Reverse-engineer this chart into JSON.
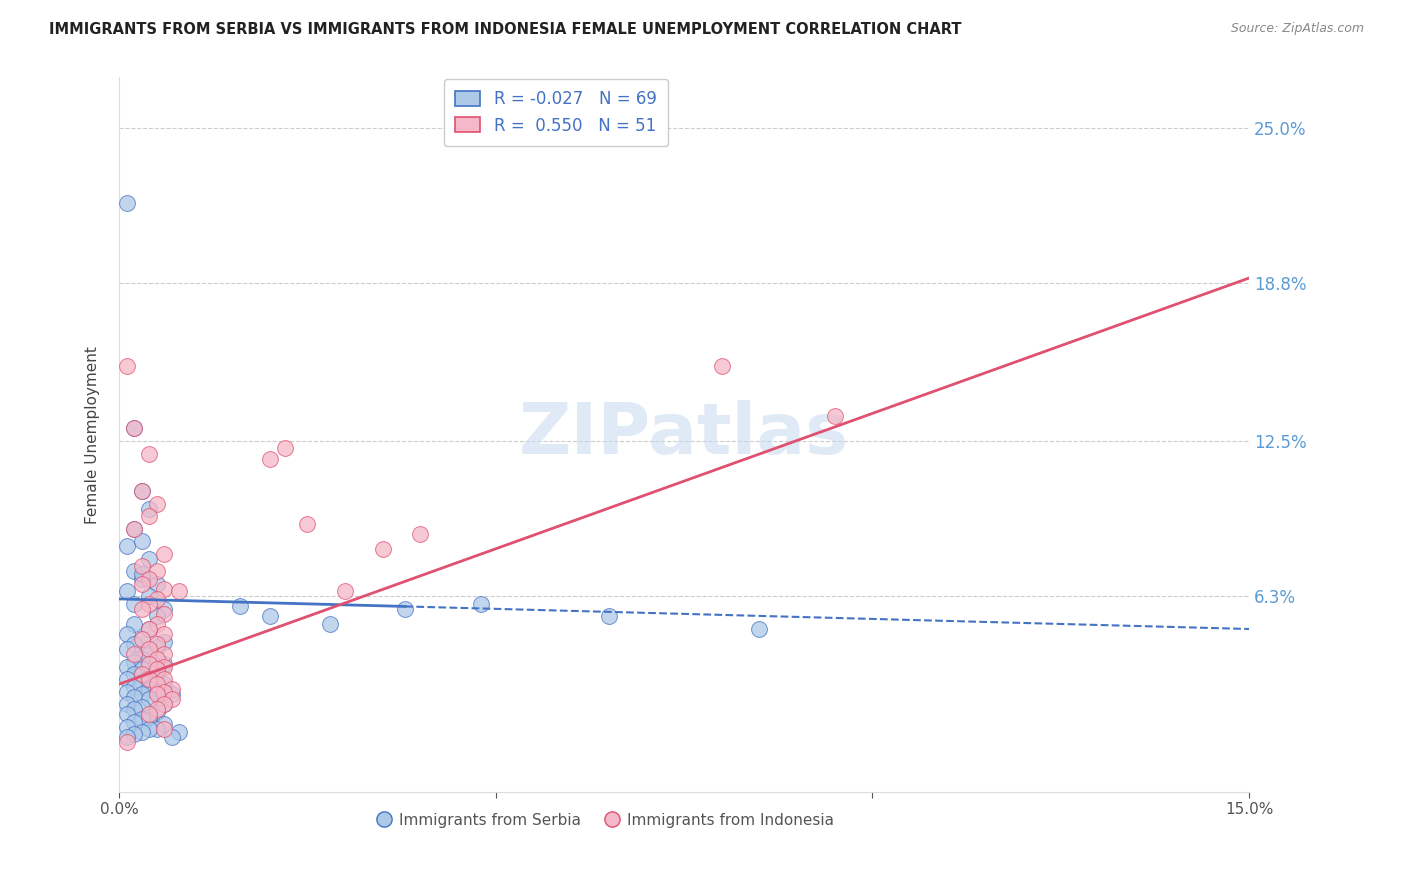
{
  "title": "IMMIGRANTS FROM SERBIA VS IMMIGRANTS FROM INDONESIA FEMALE UNEMPLOYMENT CORRELATION CHART",
  "source": "Source: ZipAtlas.com",
  "ylabel": "Female Unemployment",
  "ytick_labels": [
    "25.0%",
    "18.8%",
    "12.5%",
    "6.3%"
  ],
  "ytick_values": [
    0.25,
    0.188,
    0.125,
    0.063
  ],
  "xlim": [
    0.0,
    0.15
  ],
  "ylim": [
    -0.015,
    0.27
  ],
  "watermark": "ZIPatlas",
  "legend_serbia_R": "-0.027",
  "legend_serbia_N": "69",
  "legend_indonesia_R": "0.550",
  "legend_indonesia_N": "51",
  "serbia_color": "#adc9e8",
  "serbia_line_color": "#4472c4",
  "indonesia_color": "#f4b8c8",
  "indonesia_line_color": "#e05070",
  "serbia_trend": [
    0.0,
    0.15,
    0.062,
    0.056
  ],
  "indonesia_trend": [
    0.0,
    0.15,
    0.028,
    0.19
  ],
  "serbia_scatter": [
    [
      0.001,
      0.22
    ],
    [
      0.002,
      0.13
    ],
    [
      0.003,
      0.105
    ],
    [
      0.004,
      0.098
    ],
    [
      0.002,
      0.09
    ],
    [
      0.003,
      0.085
    ],
    [
      0.001,
      0.083
    ],
    [
      0.004,
      0.078
    ],
    [
      0.002,
      0.073
    ],
    [
      0.003,
      0.07
    ],
    [
      0.005,
      0.068
    ],
    [
      0.001,
      0.065
    ],
    [
      0.004,
      0.063
    ],
    [
      0.002,
      0.06
    ],
    [
      0.006,
      0.058
    ],
    [
      0.003,
      0.072
    ],
    [
      0.005,
      0.055
    ],
    [
      0.002,
      0.052
    ],
    [
      0.004,
      0.05
    ],
    [
      0.001,
      0.048
    ],
    [
      0.003,
      0.046
    ],
    [
      0.006,
      0.045
    ],
    [
      0.002,
      0.044
    ],
    [
      0.005,
      0.043
    ],
    [
      0.001,
      0.042
    ],
    [
      0.004,
      0.04
    ],
    [
      0.003,
      0.038
    ],
    [
      0.002,
      0.037
    ],
    [
      0.006,
      0.036
    ],
    [
      0.001,
      0.035
    ],
    [
      0.003,
      0.034
    ],
    [
      0.005,
      0.033
    ],
    [
      0.002,
      0.032
    ],
    [
      0.004,
      0.031
    ],
    [
      0.001,
      0.03
    ],
    [
      0.003,
      0.029
    ],
    [
      0.006,
      0.028
    ],
    [
      0.002,
      0.027
    ],
    [
      0.004,
      0.026
    ],
    [
      0.001,
      0.025
    ],
    [
      0.005,
      0.025
    ],
    [
      0.003,
      0.024
    ],
    [
      0.007,
      0.024
    ],
    [
      0.002,
      0.023
    ],
    [
      0.004,
      0.022
    ],
    [
      0.001,
      0.02
    ],
    [
      0.006,
      0.02
    ],
    [
      0.003,
      0.019
    ],
    [
      0.002,
      0.018
    ],
    [
      0.005,
      0.017
    ],
    [
      0.001,
      0.016
    ],
    [
      0.004,
      0.015
    ],
    [
      0.003,
      0.014
    ],
    [
      0.002,
      0.013
    ],
    [
      0.006,
      0.012
    ],
    [
      0.001,
      0.011
    ],
    [
      0.005,
      0.01
    ],
    [
      0.004,
      0.01
    ],
    [
      0.003,
      0.009
    ],
    [
      0.008,
      0.009
    ],
    [
      0.002,
      0.008
    ],
    [
      0.001,
      0.007
    ],
    [
      0.007,
      0.007
    ],
    [
      0.016,
      0.059
    ],
    [
      0.02,
      0.055
    ],
    [
      0.028,
      0.052
    ],
    [
      0.038,
      0.058
    ],
    [
      0.048,
      0.06
    ],
    [
      0.065,
      0.055
    ],
    [
      0.085,
      0.05
    ]
  ],
  "indonesia_scatter": [
    [
      0.001,
      0.155
    ],
    [
      0.002,
      0.13
    ],
    [
      0.004,
      0.12
    ],
    [
      0.003,
      0.105
    ],
    [
      0.005,
      0.1
    ],
    [
      0.004,
      0.095
    ],
    [
      0.002,
      0.09
    ],
    [
      0.006,
      0.08
    ],
    [
      0.003,
      0.075
    ],
    [
      0.005,
      0.073
    ],
    [
      0.004,
      0.07
    ],
    [
      0.003,
      0.068
    ],
    [
      0.006,
      0.066
    ],
    [
      0.005,
      0.062
    ],
    [
      0.004,
      0.06
    ],
    [
      0.003,
      0.058
    ],
    [
      0.006,
      0.056
    ],
    [
      0.005,
      0.052
    ],
    [
      0.004,
      0.05
    ],
    [
      0.006,
      0.048
    ],
    [
      0.003,
      0.046
    ],
    [
      0.005,
      0.044
    ],
    [
      0.004,
      0.042
    ],
    [
      0.006,
      0.04
    ],
    [
      0.005,
      0.038
    ],
    [
      0.004,
      0.036
    ],
    [
      0.006,
      0.035
    ],
    [
      0.005,
      0.034
    ],
    [
      0.003,
      0.032
    ],
    [
      0.004,
      0.03
    ],
    [
      0.006,
      0.03
    ],
    [
      0.005,
      0.028
    ],
    [
      0.007,
      0.026
    ],
    [
      0.006,
      0.025
    ],
    [
      0.005,
      0.024
    ],
    [
      0.007,
      0.022
    ],
    [
      0.006,
      0.02
    ],
    [
      0.005,
      0.018
    ],
    [
      0.004,
      0.016
    ],
    [
      0.002,
      0.04
    ],
    [
      0.008,
      0.065
    ],
    [
      0.02,
      0.118
    ],
    [
      0.022,
      0.122
    ],
    [
      0.03,
      0.065
    ],
    [
      0.035,
      0.082
    ],
    [
      0.025,
      0.092
    ],
    [
      0.04,
      0.088
    ],
    [
      0.08,
      0.155
    ],
    [
      0.095,
      0.135
    ],
    [
      0.001,
      0.005
    ],
    [
      0.006,
      0.01
    ]
  ]
}
